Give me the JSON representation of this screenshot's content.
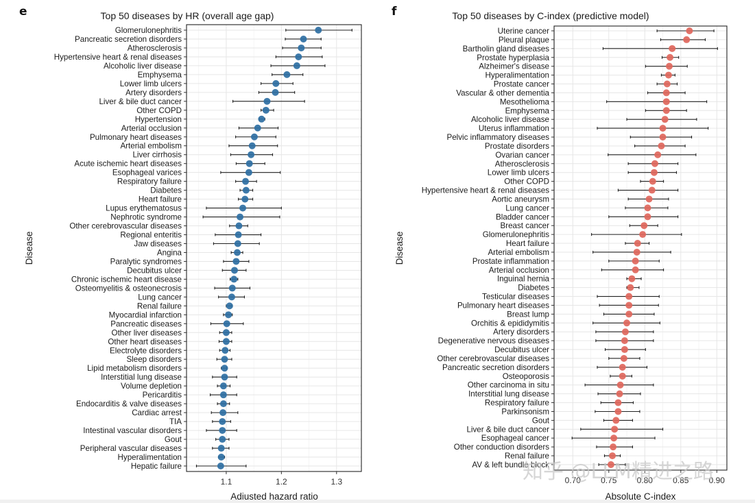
{
  "panels": {
    "left": {
      "letter": "e"
    },
    "right": {
      "letter": "f"
    }
  },
  "watermark": "知乎 @LLM精进之路",
  "colors": {
    "left_point": "#2e6fa3",
    "right_point": "#e0675c"
  },
  "chart_data": [
    {
      "type": "scatter",
      "subtype": "forest-plot",
      "title": "Top 50 diseases by HR (overall age gap)",
      "xlabel": "Adjusted hazard ratio",
      "ylabel": "Disease",
      "xlim": [
        1.028,
        1.345
      ],
      "xticks": [
        1.1,
        1.2,
        1.3
      ],
      "xtick_labels": [
        "1.1",
        "1.2",
        "1.3"
      ],
      "grid": true,
      "point_color": "#2e6fa3",
      "categories": [
        "Glomerulonephritis",
        "Pancreatic secretion disorders",
        "Atherosclerosis",
        "Hypertensive heart & renal diseases",
        "Alcoholic liver disease",
        "Emphysema",
        "Lower limb ulcers",
        "Artery disorders",
        "Liver & bile duct cancer",
        "Other COPD",
        "Hypertension",
        "Arterial occlusion",
        "Pulmonary heart diseases",
        "Arterial embolism",
        "Liver cirrhosis",
        "Acute ischemic heart diseases",
        "Esophageal varices",
        "Respiratory failure",
        "Diabetes",
        "Heart failure",
        "Lupus erythematosus",
        "Nephrotic syndrome",
        "Other cerebrovascular diseases",
        "Regional enteritis",
        "Jaw diseases",
        "Angina",
        "Paralytic syndromes",
        "Decubitus ulcer",
        "Chronic ischemic heart disease",
        "Osteomyelitis & osteonecrosis",
        "Lung cancer",
        "Renal failure",
        "Myocardial infarction",
        "Pancreatic diseases",
        "Other liver diseases",
        "Other heart diseases",
        "Electrolyte disorders",
        "Sleep disorders",
        "Lipid metabolism disorders",
        "Interstitial lung disease",
        "Volume depletion",
        "Pericarditis",
        "Endocarditis & valve diseases",
        "Cardiac arrest",
        "TIA",
        "Intestinal vascular disorders",
        "Gout",
        "Peripheral vascular diseases",
        "Hyperalimentation",
        "Hepatic failure"
      ],
      "values": [
        1.267,
        1.24,
        1.236,
        1.231,
        1.228,
        1.21,
        1.19,
        1.189,
        1.174,
        1.172,
        1.164,
        1.157,
        1.151,
        1.147,
        1.145,
        1.142,
        1.141,
        1.135,
        1.136,
        1.134,
        1.13,
        1.125,
        1.123,
        1.122,
        1.121,
        1.12,
        1.118,
        1.115,
        1.114,
        1.111,
        1.11,
        1.106,
        1.104,
        1.101,
        1.1,
        1.1,
        1.098,
        1.097,
        1.097,
        1.097,
        1.095,
        1.095,
        1.095,
        1.094,
        1.093,
        1.093,
        1.093,
        1.091,
        1.091,
        1.09
      ],
      "ci_low": [
        1.208,
        1.207,
        1.202,
        1.19,
        1.181,
        1.183,
        1.163,
        1.159,
        1.112,
        1.163,
        1.16,
        1.123,
        1.117,
        1.105,
        1.108,
        1.118,
        1.09,
        1.117,
        1.125,
        1.122,
        1.064,
        1.058,
        1.106,
        1.08,
        1.077,
        1.109,
        1.095,
        1.093,
        1.107,
        1.079,
        1.086,
        1.1,
        1.095,
        1.072,
        1.088,
        1.087,
        1.088,
        1.083,
        1.091,
        1.075,
        1.084,
        1.071,
        1.084,
        1.073,
        1.075,
        1.064,
        1.081,
        1.075,
        1.086,
        1.046
      ],
      "ci_high": [
        1.328,
        1.272,
        1.272,
        1.274,
        1.279,
        1.239,
        1.221,
        1.224,
        1.242,
        1.186,
        1.17,
        1.194,
        1.19,
        1.193,
        1.184,
        1.17,
        1.198,
        1.155,
        1.148,
        1.148,
        1.2,
        1.197,
        1.139,
        1.163,
        1.16,
        1.13,
        1.141,
        1.136,
        1.121,
        1.143,
        1.133,
        1.111,
        1.111,
        1.131,
        1.11,
        1.11,
        1.107,
        1.11,
        1.101,
        1.119,
        1.107,
        1.119,
        1.106,
        1.121,
        1.108,
        1.119,
        1.105,
        1.105,
        1.097,
        1.136
      ]
    },
    {
      "type": "scatter",
      "subtype": "forest-plot",
      "title": "Top 50 diseases by C-index (predictive model)",
      "xlabel": "Absolute C-index",
      "ylabel": "Disease",
      "xlim": [
        0.674,
        0.914
      ],
      "xticks": [
        0.7,
        0.75,
        0.8,
        0.85,
        0.9
      ],
      "xtick_labels": [
        "0.70",
        "0.75",
        "0.80",
        "0.85",
        "0.90"
      ],
      "grid": true,
      "point_color": "#e0675c",
      "categories": [
        "Uterine cancer",
        "Pleural plaque",
        "Bartholin gland diseases",
        "Prostate hyperplasia",
        "Alzheimer's disease",
        "Hyperalimentation",
        "Prostate cancer",
        "Vascular & other dementia",
        "Mesothelioma",
        "Emphysema",
        "Alcoholic liver disease",
        "Uterus inflammation",
        "Pelvic inflammatory diseases",
        "Prostate disorders",
        "Ovarian cancer",
        "Atherosclerosis",
        "Lower limb ulcers",
        "Other COPD",
        "Hypertensive heart & renal diseases",
        "Aortic aneurysm",
        "Lung cancer",
        "Bladder cancer",
        "Breast cancer",
        "Glomerulonephritis",
        "Heart failure",
        "Arterial embolism",
        "Prostate inflammation",
        "Arterial occlusion",
        "Inguinal hernia",
        "Diabetes",
        "Testicular diseases",
        "Pulmonary heart diseases",
        "Breast lump",
        "Orchitis & epididymitis",
        "Artery disorders",
        "Degenerative nervous diseases",
        "Decubitus ulcer",
        "Other cerebrovascular diseases",
        "Pancreatic secretion disorders",
        "Osteoporosis",
        "Other carcinoma in situ",
        "Interstitial lung disease",
        "Respiratory failure",
        "Parkinsonism",
        "Gout",
        "Liver & bile duct cancer",
        "Esophageal cancer",
        "Other conduction disorders",
        "Renal failure",
        "AV & left bundle block"
      ],
      "values": [
        0.862,
        0.858,
        0.838,
        0.835,
        0.834,
        0.833,
        0.831,
        0.83,
        0.83,
        0.83,
        0.828,
        0.825,
        0.825,
        0.823,
        0.818,
        0.814,
        0.813,
        0.811,
        0.81,
        0.806,
        0.804,
        0.804,
        0.799,
        0.797,
        0.79,
        0.789,
        0.787,
        0.787,
        0.782,
        0.78,
        0.778,
        0.778,
        0.778,
        0.775,
        0.773,
        0.772,
        0.772,
        0.771,
        0.769,
        0.769,
        0.766,
        0.765,
        0.763,
        0.763,
        0.76,
        0.758,
        0.757,
        0.756,
        0.755,
        0.753
      ],
      "ci_low": [
        0.817,
        0.822,
        0.742,
        0.824,
        0.801,
        0.823,
        0.817,
        0.804,
        0.747,
        0.801,
        0.775,
        0.734,
        0.78,
        0.786,
        0.749,
        0.777,
        0.777,
        0.794,
        0.763,
        0.777,
        0.773,
        0.75,
        0.779,
        0.726,
        0.773,
        0.728,
        0.75,
        0.74,
        0.775,
        0.775,
        0.734,
        0.737,
        0.743,
        0.728,
        0.732,
        0.732,
        0.745,
        0.75,
        0.734,
        0.752,
        0.717,
        0.735,
        0.739,
        0.731,
        0.743,
        0.711,
        0.699,
        0.733,
        0.744,
        0.736
      ],
      "ci_high": [
        0.896,
        0.884,
        0.901,
        0.847,
        0.859,
        0.842,
        0.845,
        0.856,
        0.886,
        0.858,
        0.872,
        0.888,
        0.865,
        0.856,
        0.871,
        0.846,
        0.844,
        0.826,
        0.846,
        0.833,
        0.832,
        0.846,
        0.818,
        0.851,
        0.806,
        0.836,
        0.82,
        0.826,
        0.795,
        0.792,
        0.82,
        0.819,
        0.813,
        0.821,
        0.812,
        0.812,
        0.801,
        0.793,
        0.803,
        0.782,
        0.812,
        0.794,
        0.784,
        0.793,
        0.783,
        0.825,
        0.814,
        0.783,
        0.766,
        0.773
      ]
    }
  ]
}
